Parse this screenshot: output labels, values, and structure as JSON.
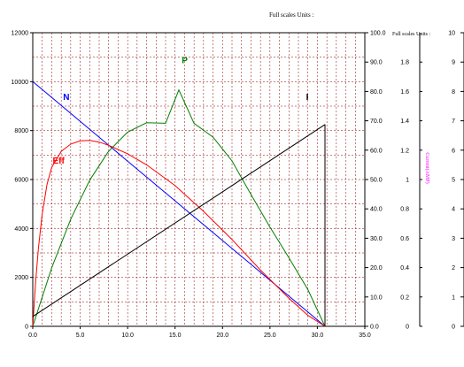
{
  "chart_data": {
    "type": "line",
    "top_note": "Full scales Units :",
    "current_axis_header": "Full scales Units :",
    "current_axis_label": "Current(AMP)",
    "x": {
      "lim": [
        0,
        35
      ],
      "ticks": [
        0,
        5,
        10,
        15,
        20,
        25,
        30,
        35
      ],
      "tick_labels": [
        "0.0",
        "5.0",
        "10.0",
        "15.0",
        "20.0",
        "25.0",
        "30.0",
        "35.0"
      ]
    },
    "y_left": {
      "lim": [
        0,
        12000
      ],
      "ticks": [
        0,
        2000,
        4000,
        6000,
        8000,
        10000,
        12000
      ],
      "tick_labels": [
        "0",
        "2000",
        "4000",
        "6000",
        "8000",
        "10000",
        "12000"
      ]
    },
    "y_right1": {
      "lim": [
        0,
        100
      ],
      "ticks": [
        0,
        10,
        20,
        30,
        40,
        50,
        60,
        70,
        80,
        90,
        100
      ],
      "tick_labels": [
        "0.0",
        "10.0",
        "20.0",
        "30.0",
        "40.0",
        "50.0",
        "60.0",
        "70.0",
        "80.0",
        "90.0",
        "100.0"
      ]
    },
    "y_right2": {
      "lim": [
        0,
        2
      ],
      "ticks": [
        0,
        0.2,
        0.4,
        0.6,
        0.8,
        1,
        1.2,
        1.4,
        1.6,
        1.8
      ],
      "tick_labels": [
        "0",
        "0.2",
        "0.4",
        "0.6",
        "0.8",
        "1",
        "1.2",
        "1.4",
        "1.6",
        "1.8"
      ]
    },
    "y_right3": {
      "lim": [
        0,
        10
      ],
      "ticks": [
        0,
        1,
        2,
        3,
        4,
        5,
        6,
        7,
        8,
        9,
        10
      ],
      "tick_labels": [
        "0",
        "1",
        "2",
        "3",
        "4",
        "5",
        "6",
        "7",
        "8",
        "9",
        "10"
      ]
    },
    "grid": true,
    "series": [
      {
        "name": "N",
        "color": "#0000ff",
        "axis": "left",
        "x": [
          0,
          5,
          10,
          15,
          20,
          25,
          30,
          30.8
        ],
        "y": [
          10000,
          8377,
          6753,
          5130,
          3506,
          1883,
          260,
          0
        ]
      },
      {
        "name": "P",
        "color": "#008000",
        "axis": "left",
        "x": [
          0,
          2,
          4,
          6,
          8,
          10,
          12,
          14,
          15.4,
          17,
          19,
          21,
          23,
          25,
          27,
          29,
          30.8
        ],
        "y": [
          0,
          2392,
          4382,
          5970,
          7156,
          7939,
          8320,
          8298,
          9660,
          8300,
          7730,
          6760,
          5390,
          4050,
          2800,
          1500,
          0
        ]
      },
      {
        "name": "Eff",
        "color": "#ff0000",
        "axis": "left",
        "x": [
          0,
          0.3,
          0.6,
          1,
          1.5,
          2,
          3,
          4,
          5,
          6,
          7,
          8,
          10,
          12,
          15,
          18,
          21,
          24,
          27,
          29,
          30.8
        ],
        "y": [
          0,
          1800,
          3200,
          4600,
          5800,
          6500,
          7150,
          7450,
          7580,
          7600,
          7530,
          7400,
          7050,
          6600,
          5750,
          4700,
          3550,
          2300,
          1150,
          450,
          0
        ]
      },
      {
        "name": "I",
        "color": "#000000",
        "axis": "left",
        "x": [
          0,
          30.8
        ],
        "y": [
          400,
          8250
        ]
      }
    ],
    "annotations": [
      {
        "text": "N",
        "color": "#0000ff",
        "x": 3.2,
        "y": 9250
      },
      {
        "text": "P",
        "color": "#008000",
        "x": 15.7,
        "y": 10750
      },
      {
        "text": "Eff",
        "color": "#ff0000",
        "x": 2.1,
        "y": 6650
      },
      {
        "text": "I",
        "color": "#000000",
        "x": 28.8,
        "y": 9250
      }
    ]
  }
}
